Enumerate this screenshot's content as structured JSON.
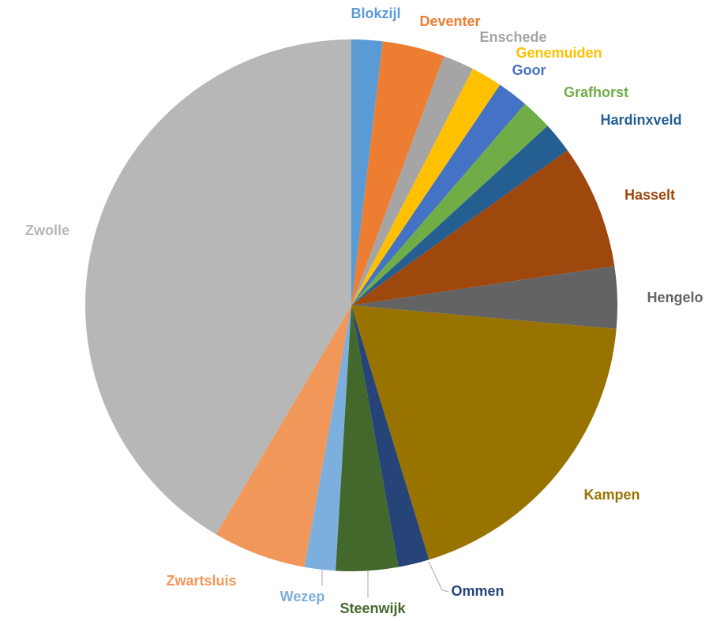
{
  "chart_data": {
    "type": "pie",
    "categories": [
      "Blokzijl",
      "Deventer",
      "Enschede",
      "Genemuiden",
      "Goor",
      "Grafhorst",
      "Hardinxveld",
      "Hasselt",
      "Hengelo",
      "Kampen",
      "Ommen",
      "Steenwijk",
      "Wezep",
      "Zwartsluis",
      "Zwolle"
    ],
    "values": [
      1,
      2,
      1,
      1,
      1,
      1,
      1,
      4,
      2,
      10,
      1,
      2,
      1,
      3,
      22
    ],
    "colors": [
      "#5b9bd5",
      "#ed7d31",
      "#a5a5a5",
      "#ffc000",
      "#4472c4",
      "#70ad47",
      "#255e91",
      "#9e480e",
      "#636363",
      "#997300",
      "#264478",
      "#43682b",
      "#7cafdd",
      "#f1975a",
      "#b7b7b7"
    ]
  }
}
